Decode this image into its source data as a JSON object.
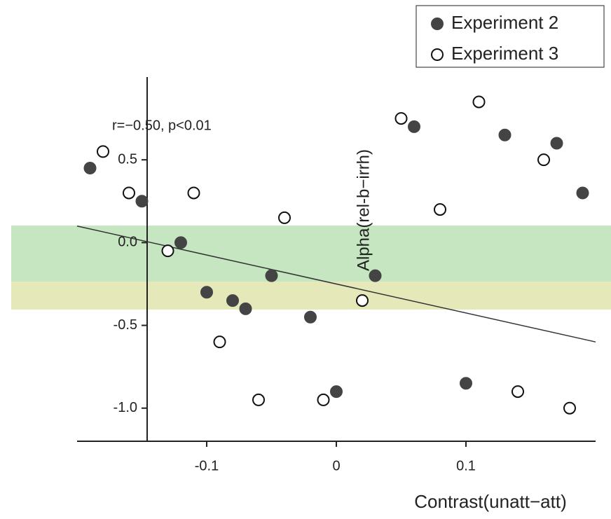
{
  "chart_data": {
    "type": "scatter",
    "annotation": "r=−0.50, p<0.01",
    "x_label": "Contrast(unatt−att)",
    "y_label": "Alpha(rel-b−irrh)",
    "xlim": [
      -0.2,
      0.2
    ],
    "ylim": [
      -1.2,
      1.0
    ],
    "xticks": [
      -0.1,
      0.0,
      {
        "value": 0.1,
        "label": "0.1"
      }
    ],
    "yticks": [
      {
        "value": -1.0,
        "label": "-1.0"
      },
      -0.5,
      {
        "value": 0.0,
        "label": "0.0"
      },
      0.5
    ],
    "legend": "top-right",
    "series": [
      {
        "name": "Experiment 2",
        "color": "#444444",
        "marker": "filled",
        "x": [
          -0.19,
          -0.15,
          -0.12,
          -0.1,
          -0.08,
          -0.07,
          -0.05,
          -0.02,
          0.0,
          0.03,
          0.06,
          0.1,
          0.13,
          0.17,
          0.19
        ],
        "values": [
          0.45,
          0.25,
          0.0,
          -0.3,
          -0.35,
          -0.4,
          -0.2,
          -0.45,
          -0.9,
          -0.2,
          0.7,
          -0.85,
          0.65,
          0.6,
          0.3
        ]
      },
      {
        "name": "Experiment 3",
        "color": "#111111",
        "marker": "open",
        "x": [
          -0.18,
          -0.16,
          -0.13,
          -0.11,
          -0.09,
          -0.06,
          -0.04,
          -0.01,
          0.02,
          0.05,
          0.08,
          0.11,
          0.14,
          0.16,
          0.18
        ],
        "values": [
          0.55,
          0.3,
          -0.05,
          0.3,
          -0.6,
          -0.95,
          0.15,
          -0.95,
          -0.35,
          0.75,
          0.2,
          0.85,
          -0.9,
          0.5,
          -1.0
        ]
      }
    ],
    "fit": {
      "x": [
        -0.2,
        0.2
      ],
      "values": [
        0.1,
        -0.6
      ]
    }
  }
}
